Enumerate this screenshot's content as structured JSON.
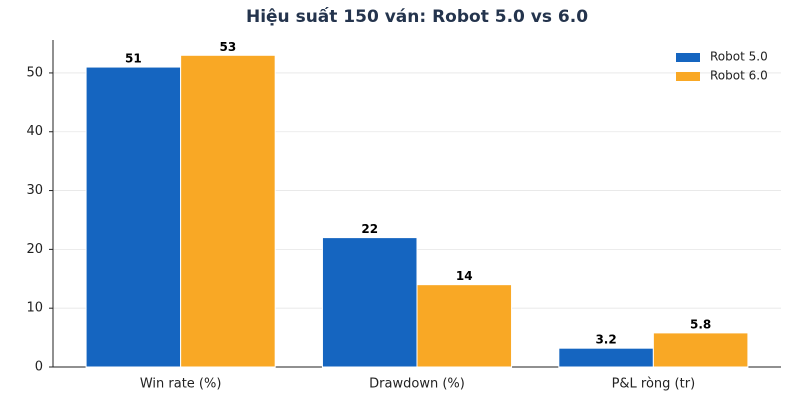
{
  "chart_data": {
    "type": "bar",
    "title": "Hiệu suất 150 ván: Robot 5.0 vs 6.0",
    "categories": [
      "Win rate (%)",
      "Drawdown (%)",
      "P&L ròng (tr)"
    ],
    "series": [
      {
        "name": "Robot 5.0",
        "color": "#1565c0",
        "values": [
          51,
          22,
          3.2
        ]
      },
      {
        "name": "Robot 6.0",
        "color": "#f9a825",
        "values": [
          53,
          14,
          5.8
        ]
      }
    ],
    "ylim": [
      0,
      55.6
    ],
    "yticks": [
      0,
      10,
      20,
      30,
      40,
      50
    ],
    "grid": true,
    "legend": "upper right"
  }
}
